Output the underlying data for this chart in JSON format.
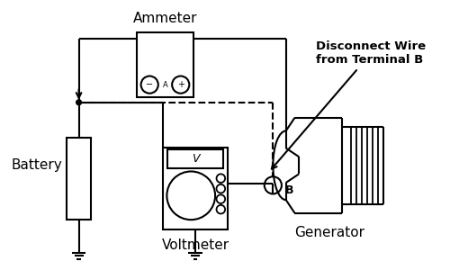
{
  "background_color": "#ffffff",
  "line_color": "#000000",
  "labels": {
    "ammeter": "Ammeter",
    "battery": "Battery",
    "voltmeter": "Voltmeter",
    "generator": "Generator",
    "disconnect": "Disconnect Wire\nfrom Terminal B",
    "terminal_b": "B"
  },
  "figsize": [
    5.0,
    3.1
  ],
  "dpi": 100
}
